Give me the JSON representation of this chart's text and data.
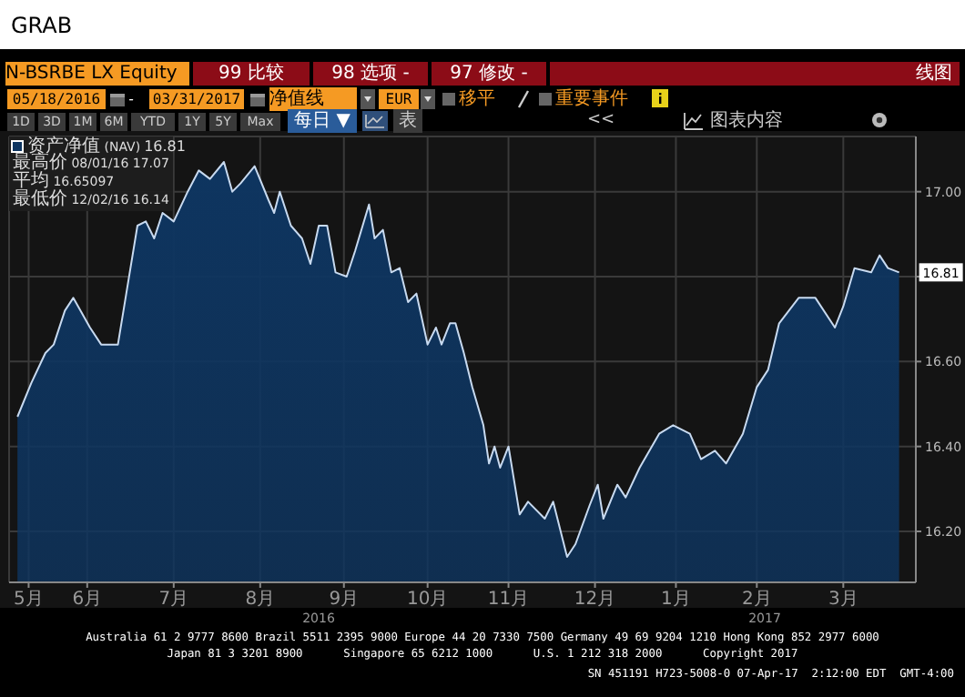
{
  "chart_data": {
    "type": "area",
    "title": "N-BSRBE LX Equity",
    "annotations": [
      "GRAB",
      "99 比较",
      "98 选项 -",
      "97 修改 -",
      "线图",
      "05/18/2016",
      "-",
      "03/31/2017",
      "净值线",
      "EUR",
      "移平",
      "重要事件",
      "1D",
      "3D",
      "1M",
      "6M",
      "YTD",
      "1Y",
      "5Y",
      "Max",
      "每日 ▼",
      "表",
      "<<",
      "图表内容",
      "最高价 08/01/16 17.07",
      "平均 16.65097",
      "最低价 12/02/16 16.14",
      "2016",
      "2017",
      "Australia 61 2 9777 8600 Brazil 5511 2395 9000 Europe 44 20 7330 7500 Germany 49 69 9204 1210 Hong Kong 852 2977 6000",
      "Japan 81 3 3201 8900      Singapore 65 6212 1000      U.S. 1 212 318 2000      Copyright 2017",
      "SN 451191 H723-5008-0 07-Apr-17  2:12:00 EDT  GMT-4:00"
    ],
    "x": [
      "2016-05-19",
      "2016-05-24",
      "2016-05-29",
      "2016-06-01",
      "2016-06-05",
      "2016-06-08",
      "2016-06-14",
      "2016-06-18",
      "2016-06-24",
      "2016-06-27",
      "2016-07-01",
      "2016-07-04",
      "2016-07-07",
      "2016-07-10",
      "2016-07-14",
      "2016-07-19",
      "2016-07-23",
      "2016-07-27",
      "2016-08-01",
      "2016-08-04",
      "2016-08-07",
      "2016-08-12",
      "2016-08-17",
      "2016-08-19",
      "2016-08-21",
      "2016-08-25",
      "2016-08-29",
      "2016-09-01",
      "2016-09-04",
      "2016-09-07",
      "2016-09-10",
      "2016-09-14",
      "2016-09-17",
      "2016-09-22",
      "2016-09-24",
      "2016-09-27",
      "2016-09-30",
      "2016-10-03",
      "2016-10-06",
      "2016-10-09",
      "2016-10-13",
      "2016-10-16",
      "2016-10-18",
      "2016-10-21",
      "2016-10-23",
      "2016-10-26",
      "2016-10-29",
      "2016-11-02",
      "2016-11-04",
      "2016-11-06",
      "2016-11-08",
      "2016-11-11",
      "2016-11-15",
      "2016-11-18",
      "2016-11-24",
      "2016-11-27",
      "2016-12-02",
      "2016-12-05",
      "2016-12-10",
      "2016-12-13",
      "2016-12-15",
      "2016-12-20",
      "2016-12-23",
      "2016-12-28",
      "2017-01-04",
      "2017-01-09",
      "2017-01-15",
      "2017-01-19",
      "2017-01-24",
      "2017-01-28",
      "2017-02-03",
      "2017-02-08",
      "2017-02-12",
      "2017-02-16",
      "2017-02-23",
      "2017-03-01",
      "2017-03-08",
      "2017-03-11",
      "2017-03-15",
      "2017-03-21",
      "2017-03-24",
      "2017-03-27",
      "2017-03-31"
    ],
    "series": [
      {
        "name": "资产净值 (NAV)",
        "color": "#0e3560",
        "values": [
          16.47,
          16.55,
          16.62,
          16.64,
          16.72,
          16.75,
          16.68,
          16.64,
          16.64,
          16.76,
          16.92,
          16.93,
          16.89,
          16.95,
          16.93,
          17.0,
          17.05,
          17.03,
          17.07,
          17.0,
          17.02,
          17.06,
          16.98,
          16.95,
          17.0,
          16.92,
          16.89,
          16.83,
          16.92,
          16.92,
          16.81,
          16.8,
          16.86,
          16.97,
          16.89,
          16.91,
          16.81,
          16.82,
          16.74,
          16.76,
          16.64,
          16.68,
          16.64,
          16.69,
          16.69,
          16.62,
          16.54,
          16.45,
          16.36,
          16.4,
          16.35,
          16.4,
          16.24,
          16.27,
          16.23,
          16.27,
          16.14,
          16.17,
          16.26,
          16.31,
          16.23,
          16.31,
          16.28,
          16.35,
          16.43,
          16.45,
          16.43,
          16.37,
          16.39,
          16.36,
          16.43,
          16.54,
          16.58,
          16.69,
          16.75,
          16.75,
          16.68,
          16.73,
          16.82,
          16.81,
          16.85,
          16.82,
          16.81
        ],
        "value_labels": [
          null,
          null,
          null,
          null,
          null,
          null,
          null,
          null,
          null,
          null,
          null,
          null,
          null,
          null,
          null,
          null,
          null,
          null,
          null,
          null,
          null,
          null,
          null,
          null,
          null,
          null,
          null,
          null,
          null,
          null,
          null,
          null,
          null,
          null,
          null,
          null,
          null,
          null,
          null,
          null,
          null,
          null,
          null,
          null,
          null,
          null,
          null,
          null,
          null,
          null,
          null,
          null,
          null,
          null,
          null,
          null,
          null,
          null,
          null,
          null,
          null,
          null,
          null,
          null,
          null,
          null,
          null,
          null,
          null,
          null,
          null,
          null,
          null,
          null,
          null,
          null,
          null,
          null,
          null,
          null,
          null,
          null,
          "16.81"
        ]
      }
    ],
    "xlim": [
      "2016-05-16",
      "2017-04-06"
    ],
    "xticks": [
      {
        "value": "2016-05-23",
        "label": "5月"
      },
      {
        "value": "2016-06-13",
        "label": "6月"
      },
      {
        "value": "2016-07-14",
        "label": "7月"
      },
      {
        "value": "2016-08-14",
        "label": "8月"
      },
      {
        "value": "2016-09-13",
        "label": "9月"
      },
      {
        "value": "2016-10-13",
        "label": "10月"
      },
      {
        "value": "2016-11-11",
        "label": "11月"
      },
      {
        "value": "2016-12-12",
        "label": "12月"
      },
      {
        "value": "2017-01-10",
        "label": "1月"
      },
      {
        "value": "2017-02-08",
        "label": "2月"
      },
      {
        "value": "2017-03-11",
        "label": "3月"
      }
    ],
    "ylim": [
      16.08,
      17.13
    ],
    "yticks": [
      {
        "value": 16.2,
        "label": "16.20"
      },
      {
        "value": 16.4,
        "label": "16.40"
      },
      {
        "value": 16.6,
        "label": "16.60"
      },
      {
        "value": 16.8,
        "label": null
      },
      {
        "value": 17.0,
        "label": "17.00"
      }
    ],
    "grid": true,
    "legend": "top left"
  }
}
